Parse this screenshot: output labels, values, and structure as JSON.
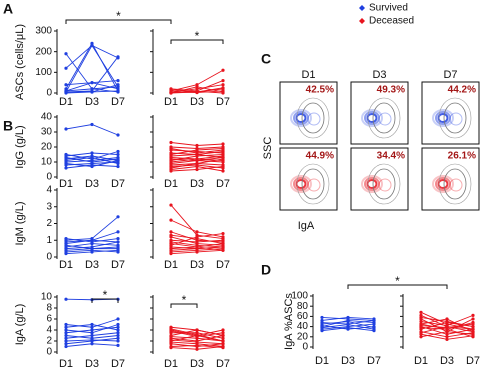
{
  "legend": [
    {
      "name": "Survived",
      "color": "#1f3fe0"
    },
    {
      "name": "Deceased",
      "color": "#e8141e"
    }
  ],
  "chart_data": [
    {
      "type": "line",
      "panel": "A",
      "ylabel": "ASCs (cells/μL)",
      "categories": [
        "D1",
        "D3",
        "D7"
      ],
      "ylim": [
        0,
        300
      ],
      "yticks": [
        0,
        100,
        200,
        300
      ],
      "groups": [
        {
          "color": "#1f3fe0",
          "series": [
            {
              "values": [
                120,
                230,
                30
              ]
            },
            {
              "values": [
                20,
                240,
                10
              ]
            },
            {
              "values": [
                5,
                230,
                170
              ]
            },
            {
              "values": [
                10,
                50,
                20
              ]
            },
            {
              "values": [
                190,
                20,
                5
              ]
            },
            {
              "values": [
                5,
                10,
                175
              ]
            },
            {
              "values": [
                40,
                50,
                60
              ]
            },
            {
              "values": [
                10,
                20,
                30
              ]
            },
            {
              "values": [
                5,
                5,
                40
              ]
            },
            {
              "values": [
                0,
                5,
                10
              ]
            }
          ]
        },
        {
          "color": "#e8141e",
          "series": [
            {
              "values": [
                5,
                20,
                40
              ]
            },
            {
              "values": [
                10,
                40,
                110
              ]
            },
            {
              "values": [
                0,
                5,
                20
              ]
            },
            {
              "values": [
                20,
                10,
                60
              ]
            },
            {
              "values": [
                5,
                2,
                10
              ]
            },
            {
              "values": [
                0,
                30,
                5
              ]
            },
            {
              "values": [
                15,
                5,
                25
              ]
            },
            {
              "values": [
                2,
                8,
                0
              ]
            }
          ]
        }
      ],
      "significance": [
        {
          "label": "*",
          "from": [
            "Survived",
            "D1"
          ],
          "to": [
            "Deceased",
            "D1"
          ]
        },
        {
          "label": "*",
          "from": [
            "Deceased",
            "D1"
          ],
          "to": [
            "Deceased",
            "D7"
          ]
        }
      ]
    },
    {
      "type": "line",
      "panel": "B",
      "ylabel": "IgG (g/L)",
      "categories": [
        "D1",
        "D3",
        "D7"
      ],
      "ylim": [
        0,
        40
      ],
      "yticks": [
        0,
        10,
        20,
        30,
        40
      ],
      "groups": [
        {
          "color": "#1f3fe0",
          "series": [
            {
              "values": [
                32,
                35,
                28
              ]
            },
            {
              "values": [
                15,
                12,
                17
              ]
            },
            {
              "values": [
                12,
                14,
                11
              ]
            },
            {
              "values": [
                10,
                11,
                13
              ]
            },
            {
              "values": [
                8,
                9,
                10
              ]
            },
            {
              "values": [
                13,
                10,
                12
              ]
            },
            {
              "values": [
                6,
                8,
                7
              ]
            },
            {
              "values": [
                11,
                13,
                9
              ]
            },
            {
              "values": [
                9,
                7,
                11
              ]
            },
            {
              "values": [
                14,
                16,
                15
              ]
            }
          ]
        },
        {
          "color": "#e8141e",
          "series": [
            {
              "values": [
                23,
                21,
                22
              ]
            },
            {
              "values": [
                20,
                19,
                20
              ]
            },
            {
              "values": [
                18,
                17,
                16
              ]
            },
            {
              "values": [
                16,
                15,
                17
              ]
            },
            {
              "values": [
                14,
                15,
                13
              ]
            },
            {
              "values": [
                13,
                12,
                14
              ]
            },
            {
              "values": [
                12,
                11,
                13
              ]
            },
            {
              "values": [
                10,
                12,
                11
              ]
            },
            {
              "values": [
                9,
                11,
                10
              ]
            },
            {
              "values": [
                8,
                9,
                12
              ]
            },
            {
              "values": [
                7,
                8,
                6
              ]
            },
            {
              "values": [
                6,
                9,
                8
              ]
            },
            {
              "values": [
                5,
                7,
                4
              ]
            },
            {
              "values": [
                15,
                18,
                19
              ]
            },
            {
              "values": [
                11,
                14,
                15
              ]
            },
            {
              "values": [
                19,
                16,
                18
              ]
            },
            {
              "values": [
                4,
                5,
                7
              ]
            }
          ]
        }
      ],
      "significance": []
    },
    {
      "type": "line",
      "ylabel": "IgM (g/L)",
      "categories": [
        "D1",
        "D3",
        "D7"
      ],
      "ylim": [
        0,
        4
      ],
      "yticks": [
        0,
        1,
        2,
        3,
        4
      ],
      "groups": [
        {
          "color": "#1f3fe0",
          "series": [
            {
              "values": [
                1,
                1.1,
                2.4
              ]
            },
            {
              "values": [
                0.9,
                1,
                1.5
              ]
            },
            {
              "values": [
                0.8,
                1,
                0.9
              ]
            },
            {
              "values": [
                0.6,
                0.8,
                0.7
              ]
            },
            {
              "values": [
                0.5,
                0.6,
                0.9
              ]
            },
            {
              "values": [
                0.4,
                0.5,
                0.6
              ]
            },
            {
              "values": [
                0.3,
                0.4,
                0.3
              ]
            },
            {
              "values": [
                0.2,
                0.3,
                0.4
              ]
            },
            {
              "values": [
                1.1,
                0.9,
                1.1
              ]
            },
            {
              "values": [
                0.7,
                0.5,
                0.5
              ]
            }
          ]
        },
        {
          "color": "#e8141e",
          "series": [
            {
              "values": [
                3.1,
                1.3,
                1.1
              ]
            },
            {
              "values": [
                2.2,
                1.5,
                1.2
              ]
            },
            {
              "values": [
                1.5,
                1,
                0.9
              ]
            },
            {
              "values": [
                1.2,
                0.8,
                0.7
              ]
            },
            {
              "values": [
                1,
                0.9,
                1
              ]
            },
            {
              "values": [
                0.9,
                0.7,
                0.6
              ]
            },
            {
              "values": [
                0.8,
                0.6,
                0.8
              ]
            },
            {
              "values": [
                0.6,
                0.5,
                0.6
              ]
            },
            {
              "values": [
                0.5,
                0.6,
                0.4
              ]
            },
            {
              "values": [
                0.4,
                0.5,
                0.6
              ]
            },
            {
              "values": [
                0.3,
                0.4,
                0.5
              ]
            },
            {
              "values": [
                0.2,
                0.3,
                0.4
              ]
            },
            {
              "values": [
                0.7,
                1.2,
                1.4
              ]
            },
            {
              "values": [
                1.3,
                1.1,
                0.8
              ]
            }
          ]
        }
      ],
      "significance": []
    },
    {
      "type": "line",
      "ylabel": "IgA (g/L)",
      "categories": [
        "D1",
        "D3",
        "D7"
      ],
      "ylim": [
        0,
        10
      ],
      "yticks": [
        0,
        2,
        4,
        6,
        8,
        10
      ],
      "groups": [
        {
          "color": "#1f3fe0",
          "series": [
            {
              "values": [
                9.6,
                9.5,
                9.6
              ]
            },
            {
              "values": [
                5,
                4.5,
                6
              ]
            },
            {
              "values": [
                4,
                3.5,
                5
              ]
            },
            {
              "values": [
                3.5,
                4,
                4.5
              ]
            },
            {
              "values": [
                3,
                2.5,
                3
              ]
            },
            {
              "values": [
                2.5,
                3,
                3.5
              ]
            },
            {
              "values": [
                2,
                2.2,
                2
              ]
            },
            {
              "values": [
                1.5,
                2,
                2.5
              ]
            },
            {
              "values": [
                1,
                1.5,
                1.2
              ]
            },
            {
              "values": [
                4.5,
                5,
                4
              ]
            }
          ]
        },
        {
          "color": "#e8141e",
          "series": [
            {
              "values": [
                4.5,
                4,
                3
              ]
            },
            {
              "values": [
                4,
                3,
                4
              ]
            },
            {
              "values": [
                3.5,
                3.5,
                2.5
              ]
            },
            {
              "values": [
                3,
                4,
                3
              ]
            },
            {
              "values": [
                2.8,
                2.5,
                2
              ]
            },
            {
              "values": [
                2.5,
                2,
                3
              ]
            },
            {
              "values": [
                2.2,
                1.8,
                1.5
              ]
            },
            {
              "values": [
                2,
                3,
                2
              ]
            },
            {
              "values": [
                1.8,
                1.5,
                1
              ]
            },
            {
              "values": [
                1.5,
                1,
                1.5
              ]
            },
            {
              "values": [
                1,
                1.2,
                0.8
              ]
            },
            {
              "values": [
                0.8,
                0.5,
                1
              ]
            },
            {
              "values": [
                3.8,
                2.8,
                3.5
              ]
            },
            {
              "values": [
                4.2,
                3.2,
                2
              ]
            }
          ]
        }
      ],
      "significance": [
        {
          "label": "*",
          "from": [
            "Survived",
            "D3"
          ],
          "to": [
            "Survived",
            "D7"
          ]
        },
        {
          "label": "*",
          "from": [
            "Deceased",
            "D1"
          ],
          "to": [
            "Deceased",
            "D3"
          ]
        }
      ]
    },
    {
      "type": "line",
      "panel": "D",
      "ylabel": "IgA %ASCs",
      "categories": [
        "D1",
        "D3",
        "D7"
      ],
      "ylim": [
        0,
        100
      ],
      "yticks": [
        0,
        20,
        40,
        60,
        80,
        100
      ],
      "groups": [
        {
          "color": "#1f3fe0",
          "series": [
            {
              "values": [
                52,
                58,
                55
              ]
            },
            {
              "values": [
                48,
                45,
                52
              ]
            },
            {
              "values": [
                45,
                50,
                38
              ]
            },
            {
              "values": [
                40,
                52,
                48
              ]
            },
            {
              "values": [
                38,
                44,
                35
              ]
            },
            {
              "values": [
                35,
                40,
                45
              ]
            },
            {
              "values": [
                32,
                38,
                32
              ]
            },
            {
              "values": [
                58,
                55,
                52
              ]
            },
            {
              "values": [
                42,
                35,
                40
              ]
            }
          ]
        },
        {
          "color": "#e8141e",
          "series": [
            {
              "values": [
                68,
                45,
                35
              ]
            },
            {
              "values": [
                58,
                50,
                40
              ]
            },
            {
              "values": [
                55,
                30,
                55
              ]
            },
            {
              "values": [
                50,
                42,
                62
              ]
            },
            {
              "values": [
                45,
                55,
                30
              ]
            },
            {
              "values": [
                42,
                38,
                45
              ]
            },
            {
              "values": [
                40,
                25,
                35
              ]
            },
            {
              "values": [
                38,
                35,
                20
              ]
            },
            {
              "values": [
                35,
                48,
                40
              ]
            },
            {
              "values": [
                30,
                20,
                28
              ]
            },
            {
              "values": [
                28,
                40,
                35
              ]
            },
            {
              "values": [
                25,
                15,
                22
              ]
            },
            {
              "values": [
                20,
                30,
                25
              ]
            },
            {
              "values": [
                45,
                35,
                48
              ]
            },
            {
              "values": [
                62,
                40,
                30
              ]
            }
          ]
        }
      ],
      "significance": [
        {
          "label": "*",
          "from": [
            "Survived",
            "D3"
          ],
          "to": [
            "Deceased",
            "D3"
          ]
        }
      ]
    }
  ],
  "flow_panel": {
    "panel": "C",
    "columns": [
      "D1",
      "D3",
      "D7"
    ],
    "ylabel": "SSC",
    "xlabel": "IgA",
    "rows": [
      {
        "color": "#1f3fe0",
        "gates": [
          "42.5%",
          "49.3%",
          "44.2%"
        ]
      },
      {
        "color": "#e8141e",
        "gates": [
          "44.9%",
          "34.4%",
          "26.1%"
        ]
      }
    ]
  }
}
